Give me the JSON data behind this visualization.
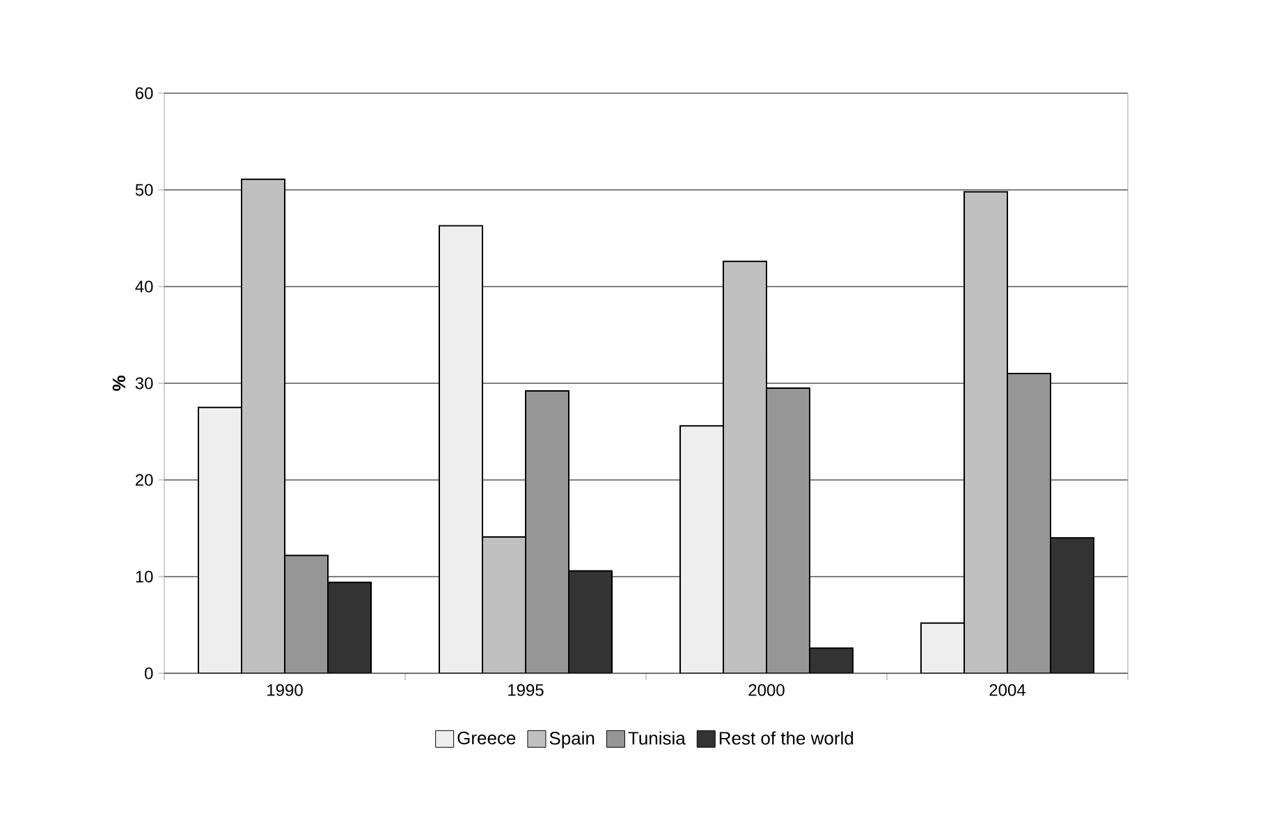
{
  "chart_data": {
    "type": "bar",
    "ylabel": "%",
    "categories": [
      "1990",
      "1995",
      "2000",
      "2004"
    ],
    "series": [
      {
        "name": "Greece",
        "color": "#eeeeee",
        "values": [
          27.5,
          46.3,
          25.6,
          5.2
        ]
      },
      {
        "name": "Spain",
        "color": "#c0c0c0",
        "values": [
          51.1,
          14.1,
          42.6,
          49.8
        ]
      },
      {
        "name": "Tunisia",
        "color": "#969696",
        "values": [
          12.2,
          29.2,
          29.5,
          31.0
        ]
      },
      {
        "name": "Rest of the world",
        "color": "#333333",
        "values": [
          9.4,
          10.6,
          2.6,
          14.0
        ]
      }
    ],
    "ylim": [
      0,
      60
    ],
    "yticks": [
      0,
      10,
      20,
      30,
      40,
      50,
      60
    ],
    "grid": "y",
    "legend": "bottom"
  }
}
